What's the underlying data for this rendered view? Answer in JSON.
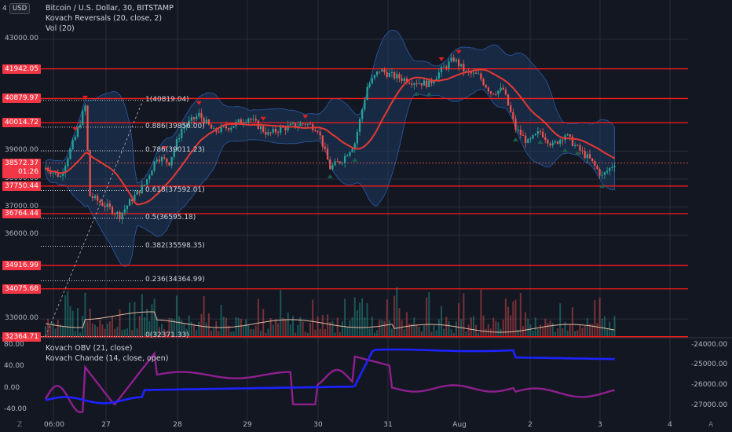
{
  "currency_badge": "USD",
  "left_axis_top_partial": "4",
  "legends": {
    "main": [
      {
        "text": "Bitcoin / U.S. Dollar, 30, BITSTAMP"
      },
      {
        "text": "Kovach Reversals (20, close, 2)"
      },
      {
        "text": "Vol (20)"
      }
    ],
    "lower": [
      {
        "text": "Kovach OBV (21, close)"
      },
      {
        "text": "Kovach Chande (14, close, open)"
      }
    ]
  },
  "left_axis_prices": [
    {
      "label": "43000.00",
      "value": 43000
    },
    {
      "label": "39000.00",
      "value": 39000
    },
    {
      "label": "38000.00",
      "value": 38000
    },
    {
      "label": "37000.00",
      "value": 37000
    },
    {
      "label": "36000.00",
      "value": 36000
    },
    {
      "label": "33000.00",
      "value": 33000
    }
  ],
  "resistance_levels": [
    {
      "label": "41942.05",
      "value": 41942.05
    },
    {
      "label": "40879.97",
      "value": 40879.97
    },
    {
      "label": "40014.72",
      "value": 40014.72
    },
    {
      "label": "37750.44",
      "value": 37750.44
    },
    {
      "label": "36764.44",
      "value": 36764.44
    },
    {
      "label": "34916.99",
      "value": 34916.99
    },
    {
      "label": "34075.68",
      "value": 34075.68
    },
    {
      "label": "32364.71",
      "value": 32364.71
    }
  ],
  "current_price": {
    "label": "38572.37",
    "countdown": "01:26",
    "value": 38572.37
  },
  "fib_levels": [
    {
      "label": "1(40819.04)",
      "value": 40819.04
    },
    {
      "label": "0.886(39856.00)",
      "value": 39856.0
    },
    {
      "label": "0.786(39011.23)",
      "value": 39011.23
    },
    {
      "label": "0.618(37592.01)",
      "value": 37592.01
    },
    {
      "label": "0.5(36595.18)",
      "value": 36595.18
    },
    {
      "label": "0.382(35598.35)",
      "value": 35598.35
    },
    {
      "label": "0.236(34364.99)",
      "value": 34364.99
    },
    {
      "label": "0(32371.33)",
      "value": 32371.33
    }
  ],
  "lower_left_axis": [
    {
      "label": "80.00",
      "value": 80
    },
    {
      "label": "40.00",
      "value": 40
    },
    {
      "label": "0.00",
      "value": 0
    },
    {
      "label": "-40.00",
      "value": -40
    }
  ],
  "lower_right_axis": [
    {
      "label": "-24000.00",
      "value": -24000
    },
    {
      "label": "-25000.00",
      "value": -25000
    },
    {
      "label": "-26000.00",
      "value": -26000
    },
    {
      "label": "-27000.00",
      "value": -27000
    }
  ],
  "time_axis": [
    "06:00",
    "27",
    "28",
    "29",
    "30",
    "31",
    "Aug",
    "2",
    "3",
    "4"
  ],
  "corner_buttons": {
    "left": "Z",
    "right": "A"
  },
  "colors": {
    "background": "#131722",
    "grid": "#2a2e39",
    "up": "#26a69a",
    "down": "#ef5350",
    "band_fill": "#1e3a5f",
    "basis": "#e53935",
    "level": "#ff1a1a",
    "obv": "#1e22ff",
    "chande": "#8e1f8e",
    "volume_ma": "#e6b8a2"
  },
  "chart_data": {
    "type": "candlestick",
    "symbol": "Bitcoin / U.S. Dollar",
    "interval": "30",
    "exchange": "BITSTAMP",
    "x_axis_labels": [
      "06:00",
      "27",
      "28",
      "29",
      "30",
      "31",
      "Aug",
      "2",
      "3",
      "4"
    ],
    "y_range": [
      32300,
      44000
    ],
    "close_path": [
      {
        "bar": 0,
        "value": 38400
      },
      {
        "bar": 6,
        "value": 38100
      },
      {
        "bar": 12,
        "value": 39500
      },
      {
        "bar": 16,
        "value": 40600
      },
      {
        "bar": 18,
        "value": 37400
      },
      {
        "bar": 25,
        "value": 37000
      },
      {
        "bar": 30,
        "value": 36700
      },
      {
        "bar": 35,
        "value": 37300
      },
      {
        "bar": 40,
        "value": 37800
      },
      {
        "bar": 45,
        "value": 38800
      },
      {
        "bar": 50,
        "value": 38600
      },
      {
        "bar": 55,
        "value": 39800
      },
      {
        "bar": 62,
        "value": 40300
      },
      {
        "bar": 68,
        "value": 39700
      },
      {
        "bar": 75,
        "value": 39900
      },
      {
        "bar": 82,
        "value": 40200
      },
      {
        "bar": 90,
        "value": 39600
      },
      {
        "bar": 95,
        "value": 39800
      },
      {
        "bar": 100,
        "value": 39900
      },
      {
        "bar": 105,
        "value": 40000
      },
      {
        "bar": 110,
        "value": 39800
      },
      {
        "bar": 115,
        "value": 38400
      },
      {
        "bar": 120,
        "value": 38700
      },
      {
        "bar": 125,
        "value": 39300
      },
      {
        "bar": 130,
        "value": 41300
      },
      {
        "bar": 135,
        "value": 41900
      },
      {
        "bar": 140,
        "value": 41700
      },
      {
        "bar": 148,
        "value": 41500
      },
      {
        "bar": 155,
        "value": 41400
      },
      {
        "bar": 160,
        "value": 41900
      },
      {
        "bar": 165,
        "value": 42300
      },
      {
        "bar": 170,
        "value": 41800
      },
      {
        "bar": 175,
        "value": 41700
      },
      {
        "bar": 180,
        "value": 41100
      },
      {
        "bar": 185,
        "value": 41200
      },
      {
        "bar": 190,
        "value": 39800
      },
      {
        "bar": 195,
        "value": 39300
      },
      {
        "bar": 200,
        "value": 39700
      },
      {
        "bar": 205,
        "value": 39200
      },
      {
        "bar": 210,
        "value": 39600
      },
      {
        "bar": 215,
        "value": 39100
      },
      {
        "bar": 220,
        "value": 38700
      },
      {
        "bar": 225,
        "value": 38100
      },
      {
        "bar": 230,
        "value": 38570
      }
    ],
    "obv_range": [
      -27300,
      -23900
    ],
    "oscillator_range": [
      -45,
      85
    ]
  }
}
